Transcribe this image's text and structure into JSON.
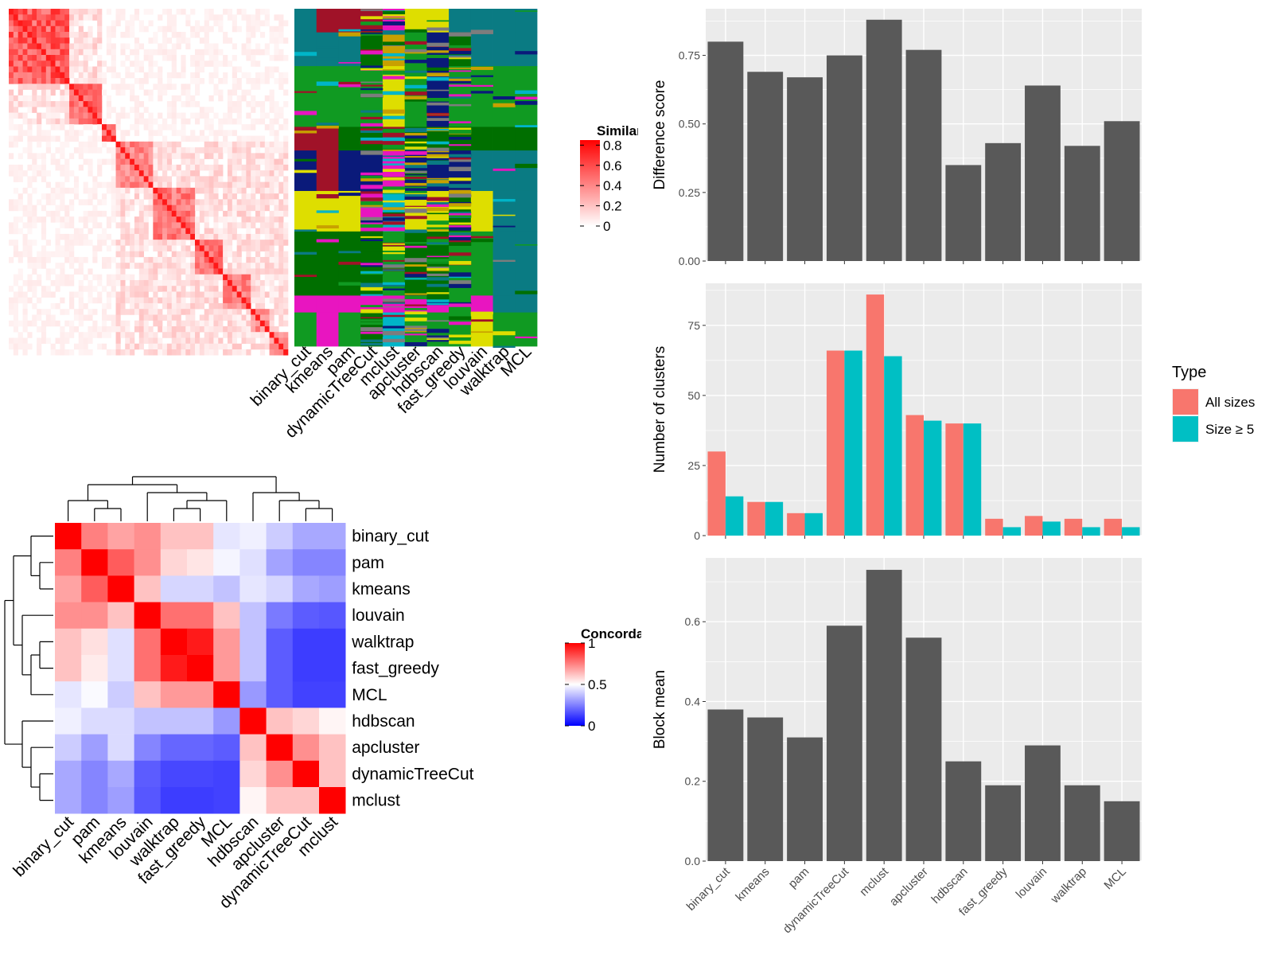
{
  "figure": {
    "similarity_legend_title": "Similarity",
    "concordance_legend_title": "Concordance"
  },
  "chart_data": [
    {
      "id": "similarity-heatmap",
      "type": "heatmap",
      "title": "",
      "legend": {
        "title": "Similarity",
        "ticks": [
          "0.8",
          "0.6",
          "0.4",
          "0.2",
          "0"
        ],
        "tick_values": [
          0.8,
          0.6,
          0.4,
          0.2,
          0
        ],
        "colors": [
          "#ffffff",
          "#ff0000"
        ]
      },
      "diagonal_blocks": [
        0.2,
        0.13,
        0.05,
        0.13,
        0.14,
        0.11,
        0.09,
        0.07,
        0.08
      ],
      "block_mean_values": [
        0.8,
        0.7,
        0.75,
        0.6,
        0.65,
        0.7,
        0.6,
        0.55,
        0.5
      ],
      "off_block_mean": 0.15
    },
    {
      "id": "partition-annotation",
      "type": "heatmap",
      "title": "",
      "columns": [
        "binary_cut",
        "kmeans",
        "pam",
        "dynamicTreeCut",
        "mclust",
        "apcluster",
        "hdbscan",
        "fast_greedy",
        "louvain",
        "walktrap",
        "MCL"
      ],
      "palette": [
        "#0a7b83",
        "#a01228",
        "#109a22",
        "#006f00",
        "#0a1a7a",
        "#dede00",
        "#e815c0",
        "#c8a000",
        "#00b5c8",
        "#7d7d7d"
      ]
    },
    {
      "id": "concordance-heatmap",
      "type": "heatmap",
      "title": "",
      "rows": [
        "binary_cut",
        "pam",
        "kmeans",
        "louvain",
        "walktrap",
        "fast_greedy",
        "MCL",
        "hdbscan",
        "apcluster",
        "dynamicTreeCut",
        "mclust"
      ],
      "columns": [
        "binary_cut",
        "pam",
        "kmeans",
        "louvain",
        "walktrap",
        "fast_greedy",
        "MCL",
        "hdbscan",
        "apcluster",
        "dynamicTreeCut",
        "mclust"
      ],
      "values": [
        [
          1.0,
          0.75,
          0.68,
          0.72,
          0.62,
          0.62,
          0.45,
          0.47,
          0.4,
          0.33,
          0.33
        ],
        [
          0.75,
          1.0,
          0.82,
          0.72,
          0.58,
          0.55,
          0.48,
          0.44,
          0.32,
          0.26,
          0.26
        ],
        [
          0.68,
          0.82,
          1.0,
          0.62,
          0.42,
          0.42,
          0.38,
          0.45,
          0.42,
          0.33,
          0.31
        ],
        [
          0.72,
          0.72,
          0.62,
          1.0,
          0.78,
          0.78,
          0.62,
          0.38,
          0.24,
          0.18,
          0.17
        ],
        [
          0.62,
          0.56,
          0.44,
          0.78,
          1.0,
          0.95,
          0.7,
          0.38,
          0.18,
          0.12,
          0.12
        ],
        [
          0.62,
          0.54,
          0.44,
          0.78,
          0.95,
          1.0,
          0.7,
          0.38,
          0.18,
          0.12,
          0.12
        ],
        [
          0.45,
          0.49,
          0.4,
          0.62,
          0.7,
          0.7,
          1.0,
          0.3,
          0.18,
          0.13,
          0.13
        ],
        [
          0.47,
          0.43,
          0.43,
          0.38,
          0.38,
          0.38,
          0.3,
          1.0,
          0.62,
          0.58,
          0.52
        ],
        [
          0.4,
          0.31,
          0.43,
          0.26,
          0.2,
          0.2,
          0.18,
          0.62,
          1.0,
          0.72,
          0.62
        ],
        [
          0.33,
          0.26,
          0.33,
          0.18,
          0.14,
          0.14,
          0.13,
          0.58,
          0.72,
          1.0,
          0.62
        ],
        [
          0.33,
          0.26,
          0.31,
          0.17,
          0.12,
          0.12,
          0.13,
          0.52,
          0.62,
          0.62,
          1.0
        ]
      ],
      "legend": {
        "title": "Concordance",
        "ticks": [
          "1",
          "0.5",
          "0"
        ],
        "tick_values": [
          1,
          0.5,
          0
        ],
        "colors": [
          "#0000ff",
          "#ffffff",
          "#ff0000"
        ]
      }
    },
    {
      "id": "difference-score",
      "type": "bar",
      "categories": [
        "binary_cut",
        "kmeans",
        "pam",
        "dynamicTreeCut",
        "mclust",
        "apcluster",
        "hdbscan",
        "fast_greedy",
        "louvain",
        "walktrap",
        "MCL"
      ],
      "values": [
        0.8,
        0.69,
        0.67,
        0.75,
        0.88,
        0.77,
        0.35,
        0.43,
        0.64,
        0.42,
        0.51
      ],
      "title": "",
      "xlabel": "",
      "ylabel": "Difference score",
      "ylim": [
        0,
        0.92
      ],
      "yticks": [
        0,
        0.25,
        0.5,
        0.75
      ],
      "ytick_labels": [
        "0.00",
        "0.25",
        "0.50",
        "0.75"
      ],
      "bar_color": "#595959",
      "panel_color": "#ebebeb",
      "grid": true
    },
    {
      "id": "number-of-clusters",
      "type": "bar",
      "categories": [
        "binary_cut",
        "kmeans",
        "pam",
        "dynamicTreeCut",
        "mclust",
        "apcluster",
        "hdbscan",
        "fast_greedy",
        "louvain",
        "walktrap",
        "MCL"
      ],
      "series": [
        {
          "name": "All sizes",
          "values": [
            30,
            12,
            8,
            66,
            86,
            43,
            40,
            6,
            7,
            6,
            6
          ],
          "color": "#f8766d"
        },
        {
          "name": "Size ≥ 5",
          "values": [
            14,
            12,
            8,
            66,
            64,
            41,
            40,
            3,
            5,
            3,
            3
          ],
          "color": "#00bfc4"
        }
      ],
      "title": "",
      "xlabel": "",
      "ylabel": "Number of clusters",
      "ylim": [
        0,
        90
      ],
      "yticks": [
        0,
        25,
        50,
        75
      ],
      "ytick_labels": [
        "0",
        "25",
        "50",
        "75"
      ],
      "legend": {
        "title": "Type",
        "placement": "right"
      },
      "panel_color": "#ebebeb",
      "grid": true
    },
    {
      "id": "block-mean",
      "type": "bar",
      "categories": [
        "binary_cut",
        "kmeans",
        "pam",
        "dynamicTreeCut",
        "mclust",
        "apcluster",
        "hdbscan",
        "fast_greedy",
        "louvain",
        "walktrap",
        "MCL"
      ],
      "values": [
        0.38,
        0.36,
        0.31,
        0.59,
        0.73,
        0.56,
        0.25,
        0.19,
        0.29,
        0.19,
        0.15
      ],
      "title": "",
      "xlabel": "",
      "ylabel": "Block mean",
      "ylim": [
        0,
        0.76
      ],
      "yticks": [
        0,
        0.2,
        0.4,
        0.6
      ],
      "ytick_labels": [
        "0.0",
        "0.2",
        "0.4",
        "0.6"
      ],
      "bar_color": "#595959",
      "panel_color": "#ebebeb",
      "grid": true
    }
  ]
}
